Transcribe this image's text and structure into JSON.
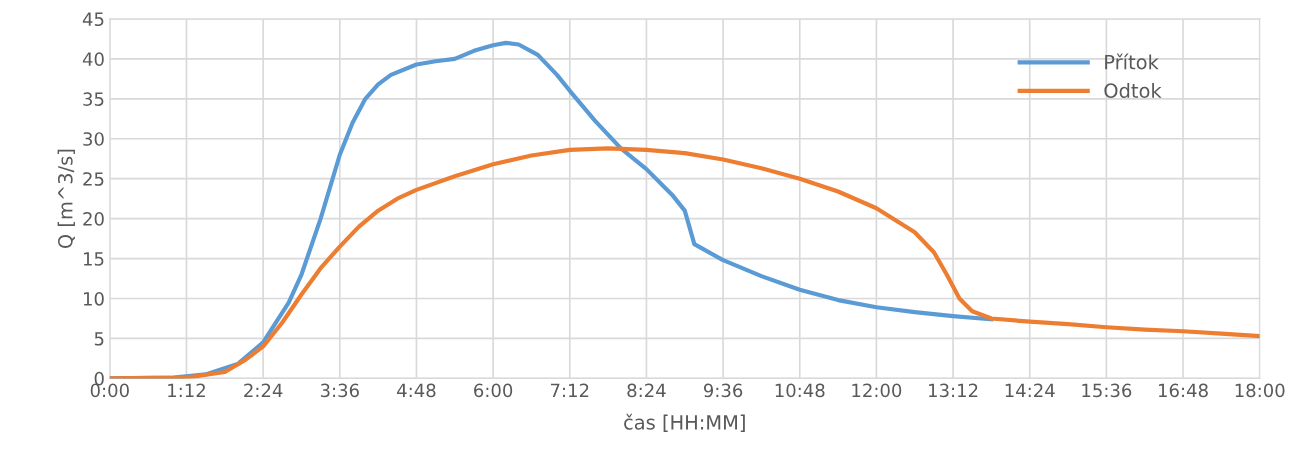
{
  "chart_data": {
    "type": "line",
    "xlabel": "čas [HH:MM]",
    "ylabel": "Q [m^3/s]",
    "xlim": [
      0,
      18
    ],
    "xticks": [
      {
        "value": 0,
        "label": "0:00"
      },
      {
        "value": 1.2,
        "label": "1:12"
      },
      {
        "value": 2.4,
        "label": "2:24"
      },
      {
        "value": 3.6,
        "label": "3:36"
      },
      {
        "value": 4.8,
        "label": "4:48"
      },
      {
        "value": 6,
        "label": "6:00"
      },
      {
        "value": 7.2,
        "label": "7:12"
      },
      {
        "value": 8.4,
        "label": "8:24"
      },
      {
        "value": 9.6,
        "label": "9:36"
      },
      {
        "value": 10.8,
        "label": "10:48"
      },
      {
        "value": 12,
        "label": "12:00"
      },
      {
        "value": 13.2,
        "label": "13:12"
      },
      {
        "value": 14.4,
        "label": "14:24"
      },
      {
        "value": 15.6,
        "label": "15:36"
      },
      {
        "value": 16.8,
        "label": "16:48"
      },
      {
        "value": 18,
        "label": "18:00"
      }
    ],
    "ylim": [
      0,
      45
    ],
    "yticks": [
      0,
      5,
      10,
      15,
      20,
      25,
      30,
      35,
      40,
      45
    ],
    "grid": true,
    "legend": "top right",
    "marker": "none",
    "line_style": "solid",
    "series": [
      {
        "name": "Přítok",
        "color": "#5b9bd5",
        "x": [
          0,
          1.0,
          1.5,
          2.0,
          2.4,
          2.8,
          3.0,
          3.3,
          3.6,
          3.8,
          4.0,
          4.2,
          4.4,
          4.8,
          5.1,
          5.4,
          5.7,
          6.0,
          6.2,
          6.4,
          6.7,
          7.0,
          7.2,
          7.6,
          8.0,
          8.4,
          8.8,
          9.0,
          9.15,
          9.6,
          10.2,
          10.8,
          11.4,
          12.0,
          12.6,
          13.2,
          13.8
        ],
        "values": [
          0,
          0.1,
          0.5,
          1.8,
          4.5,
          9.5,
          13,
          20,
          28,
          32,
          35,
          36.8,
          38,
          39.3,
          39.7,
          40,
          41,
          41.7,
          42,
          41.8,
          40.5,
          38,
          36,
          32.2,
          28.8,
          26.2,
          23,
          21,
          16.8,
          14.8,
          12.8,
          11.1,
          9.8,
          8.9,
          8.3,
          7.8,
          7.4
        ]
      },
      {
        "name": "Odtok",
        "color": "#ed7d31",
        "x": [
          0,
          1.2,
          1.8,
          2.1,
          2.4,
          2.7,
          3.0,
          3.3,
          3.6,
          3.9,
          4.2,
          4.5,
          4.8,
          5.4,
          6.0,
          6.6,
          7.2,
          7.8,
          8.4,
          9.0,
          9.6,
          10.2,
          10.8,
          11.4,
          12.0,
          12.6,
          12.9,
          13.1,
          13.3,
          13.5,
          13.8,
          14.4,
          15.0,
          15.6,
          16.2,
          16.8,
          17.4,
          18.0
        ],
        "values": [
          0,
          0.1,
          0.8,
          2.2,
          4,
          7,
          10.5,
          13.8,
          16.5,
          19,
          21,
          22.5,
          23.6,
          25.3,
          26.8,
          27.9,
          28.6,
          28.8,
          28.6,
          28.2,
          27.4,
          26.3,
          25,
          23.4,
          21.3,
          18.3,
          15.8,
          13,
          10,
          8.4,
          7.5,
          7.1,
          6.8,
          6.4,
          6.1,
          5.9,
          5.6,
          5.3
        ]
      }
    ]
  }
}
